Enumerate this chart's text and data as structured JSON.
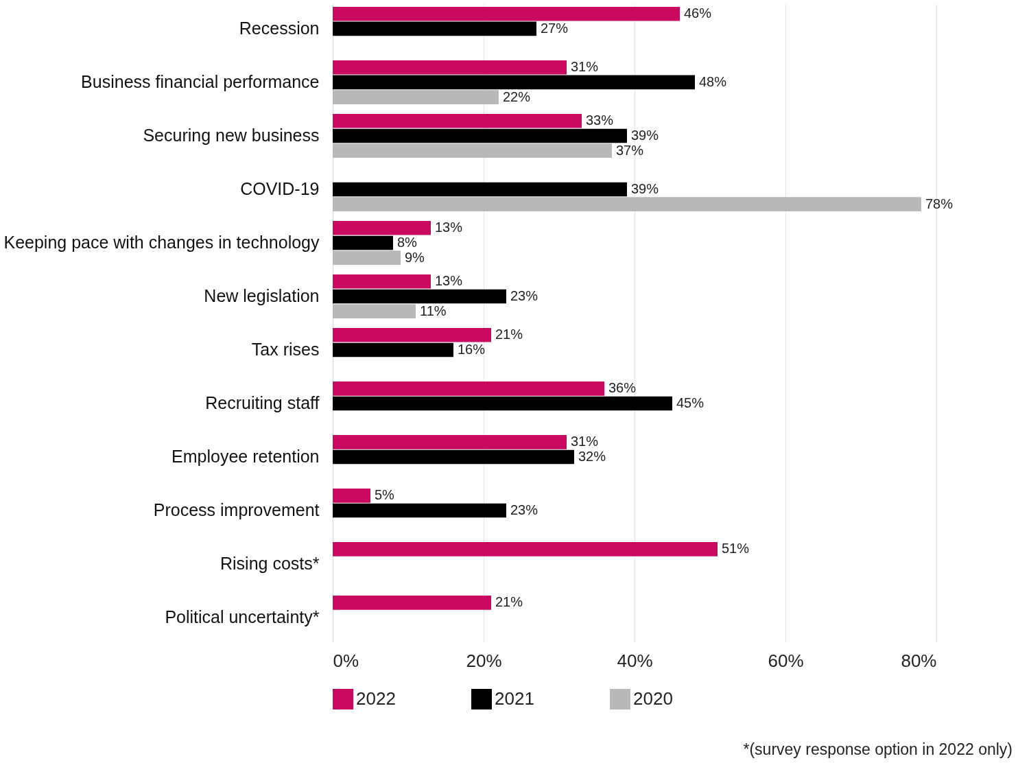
{
  "chart_data": {
    "type": "bar",
    "orientation": "horizontal",
    "categories": [
      "Recession",
      "Business financial performance",
      "Securing new business",
      "COVID-19",
      "Keeping pace with changes in technology",
      "New legislation",
      "Tax rises",
      "Recruiting staff",
      "Employee retention",
      "Process improvement",
      "Rising costs*",
      "Political uncertainty*"
    ],
    "series": [
      {
        "name": "2022",
        "color": "#c8095f",
        "values": [
          46,
          31,
          33,
          0,
          13,
          13,
          21,
          36,
          31,
          5,
          51,
          21
        ],
        "value_labels": [
          "46%",
          "31%",
          "33%",
          null,
          "13%",
          "13%",
          "21%",
          "36%",
          "31%",
          "5%",
          "51%",
          "21%"
        ]
      },
      {
        "name": "2021",
        "color": "#000000",
        "values": [
          27,
          48,
          39,
          39,
          8,
          23,
          16,
          45,
          32,
          23,
          null,
          null
        ],
        "value_labels": [
          "27%",
          "48%",
          "39%",
          "39%",
          "8%",
          "23%",
          "16%",
          "45%",
          "32%",
          "23%",
          null,
          null
        ]
      },
      {
        "name": "2020",
        "color": "#b8b8b8",
        "values": [
          0,
          22,
          37,
          78,
          9,
          11,
          null,
          null,
          null,
          null,
          null,
          null
        ],
        "value_labels": [
          null,
          "22%",
          "37%",
          "78%",
          "9%",
          "11%",
          null,
          null,
          null,
          null,
          null,
          null
        ]
      }
    ],
    "xlim": [
      0,
      80
    ],
    "xticks": [
      {
        "value": 0,
        "label": "0%"
      },
      {
        "value": 20,
        "label": "20%"
      },
      {
        "value": 40,
        "label": "40%"
      },
      {
        "value": 60,
        "label": "60%"
      },
      {
        "value": 80,
        "label": "80%"
      }
    ],
    "grid": "x",
    "legend": "bottom",
    "annotations": [
      "*(survey response option in 2022 only)"
    ]
  }
}
